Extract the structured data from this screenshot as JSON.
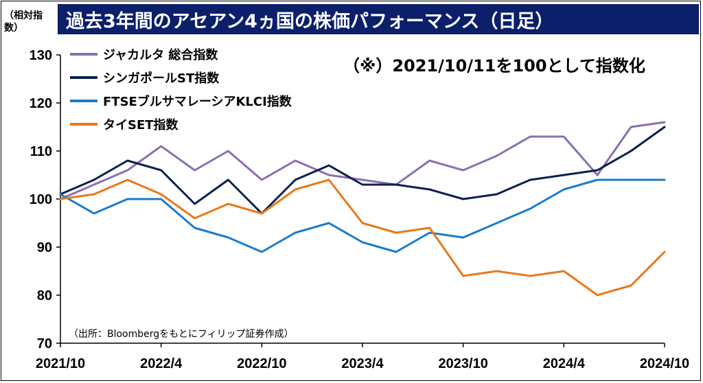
{
  "title": "過去3年間のアセアン4ヵ国の株価パフォーマンス（日足）",
  "ylabel": "（相対指数）",
  "note": "（※）2021/10/11を100として指数化",
  "source": "（出所：Bloombergをもとにフィリップ証券作成）",
  "chart_data": {
    "type": "line",
    "ylim": [
      70,
      130
    ],
    "yticks": [
      "130",
      "120",
      "110",
      "100",
      "90",
      "80",
      "70"
    ],
    "xticks": [
      "2021/10",
      "2022/4",
      "2022/10",
      "2023/4",
      "2023/10",
      "2024/4",
      "2024/10"
    ],
    "x": [
      "2021/10",
      "2021/12",
      "2022/2",
      "2022/4",
      "2022/6",
      "2022/8",
      "2022/10",
      "2022/12",
      "2023/2",
      "2023/4",
      "2023/6",
      "2023/8",
      "2023/10",
      "2023/12",
      "2024/2",
      "2024/4",
      "2024/6",
      "2024/8",
      "2024/10"
    ],
    "legend_position": "top-left",
    "series": [
      {
        "name": "ジャカルタ 総合指数",
        "color": "#8a6fb3",
        "values": [
          100,
          103,
          106,
          111,
          106,
          110,
          104,
          108,
          105,
          104,
          103,
          108,
          106,
          109,
          113,
          113,
          105,
          115,
          116
        ]
      },
      {
        "name": "シンガポールST指数",
        "color": "#0b1f4d",
        "values": [
          101,
          104,
          108,
          106,
          99,
          104,
          97,
          104,
          107,
          103,
          103,
          102,
          100,
          101,
          104,
          105,
          106,
          110,
          115
        ]
      },
      {
        "name": "FTSEブルサマレーシアKLCI指数",
        "color": "#1a7bcb",
        "values": [
          101,
          97,
          100,
          100,
          94,
          92,
          89,
          93,
          95,
          91,
          89,
          93,
          92,
          95,
          98,
          102,
          104,
          104,
          104
        ]
      },
      {
        "name": "タイSET指数",
        "color": "#e8781a",
        "values": [
          100,
          101,
          104,
          101,
          96,
          99,
          97,
          102,
          104,
          95,
          93,
          94,
          84,
          85,
          84,
          85,
          80,
          82,
          89
        ]
      }
    ]
  }
}
